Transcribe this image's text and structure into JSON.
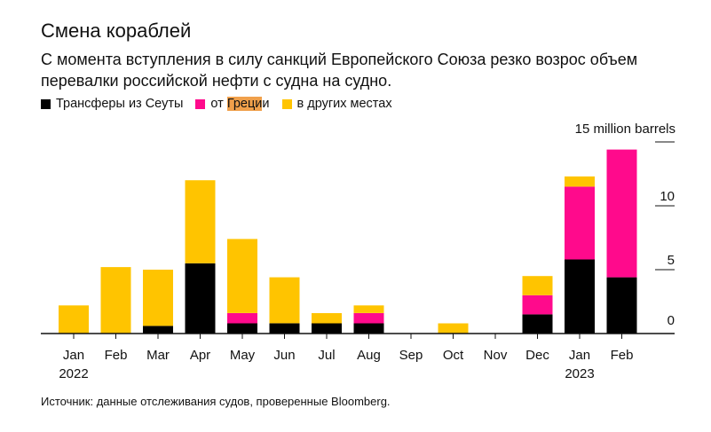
{
  "title": "Смена кораблей",
  "subtitle": "С момента вступления в силу санкций Европейского Союза резко возрос объем перевалки российской нефти с судна на судно.",
  "legend": {
    "items": [
      {
        "label_before": "Трансферы из Сеуты",
        "highlight": "",
        "label_after": "",
        "color": "#000000"
      },
      {
        "label_before": "от ",
        "highlight": "Греци",
        "label_after": "и",
        "color": "#ff0a8c"
      },
      {
        "label_before": "в других местах",
        "highlight": "",
        "label_after": "",
        "color": "#ffc400"
      }
    ]
  },
  "source": "Источник: данные отслеживания судов, проверенные Bloomberg.",
  "chart_data": {
    "type": "bar",
    "stacked": true,
    "categories": [
      "Jan",
      "Feb",
      "Mar",
      "Apr",
      "May",
      "Jun",
      "Jul",
      "Aug",
      "Sep",
      "Oct",
      "Nov",
      "Dec",
      "Jan",
      "Feb"
    ],
    "year_labels": {
      "0": "2022",
      "12": "2023"
    },
    "series": [
      {
        "name": "Трансферы из Сеуты",
        "color": "#000000",
        "values": [
          0,
          0,
          0.6,
          5.5,
          0.8,
          0.8,
          0.8,
          0.8,
          0,
          0,
          0,
          1.5,
          5.8,
          4.4
        ]
      },
      {
        "name": "от Греции",
        "color": "#ff0a8c",
        "values": [
          0,
          0,
          0,
          0,
          0.8,
          0,
          0,
          0.8,
          0,
          0,
          0,
          1.5,
          5.7,
          10.0
        ]
      },
      {
        "name": "в других местах",
        "color": "#ffc400",
        "values": [
          2.2,
          5.2,
          4.4,
          6.5,
          5.8,
          3.6,
          0.8,
          0.6,
          0,
          0.8,
          0,
          1.5,
          0.8,
          0
        ]
      }
    ],
    "y_unit_label": "15 million barrels",
    "yticks": [
      {
        "value": 0,
        "label": "0"
      },
      {
        "value": 5,
        "label": "5"
      },
      {
        "value": 10,
        "label": "10"
      },
      {
        "value": 15,
        "label": ""
      }
    ],
    "ylim": [
      0,
      15
    ],
    "xlabel": "",
    "ylabel": "",
    "legend_position": "top-left",
    "grid": false
  }
}
